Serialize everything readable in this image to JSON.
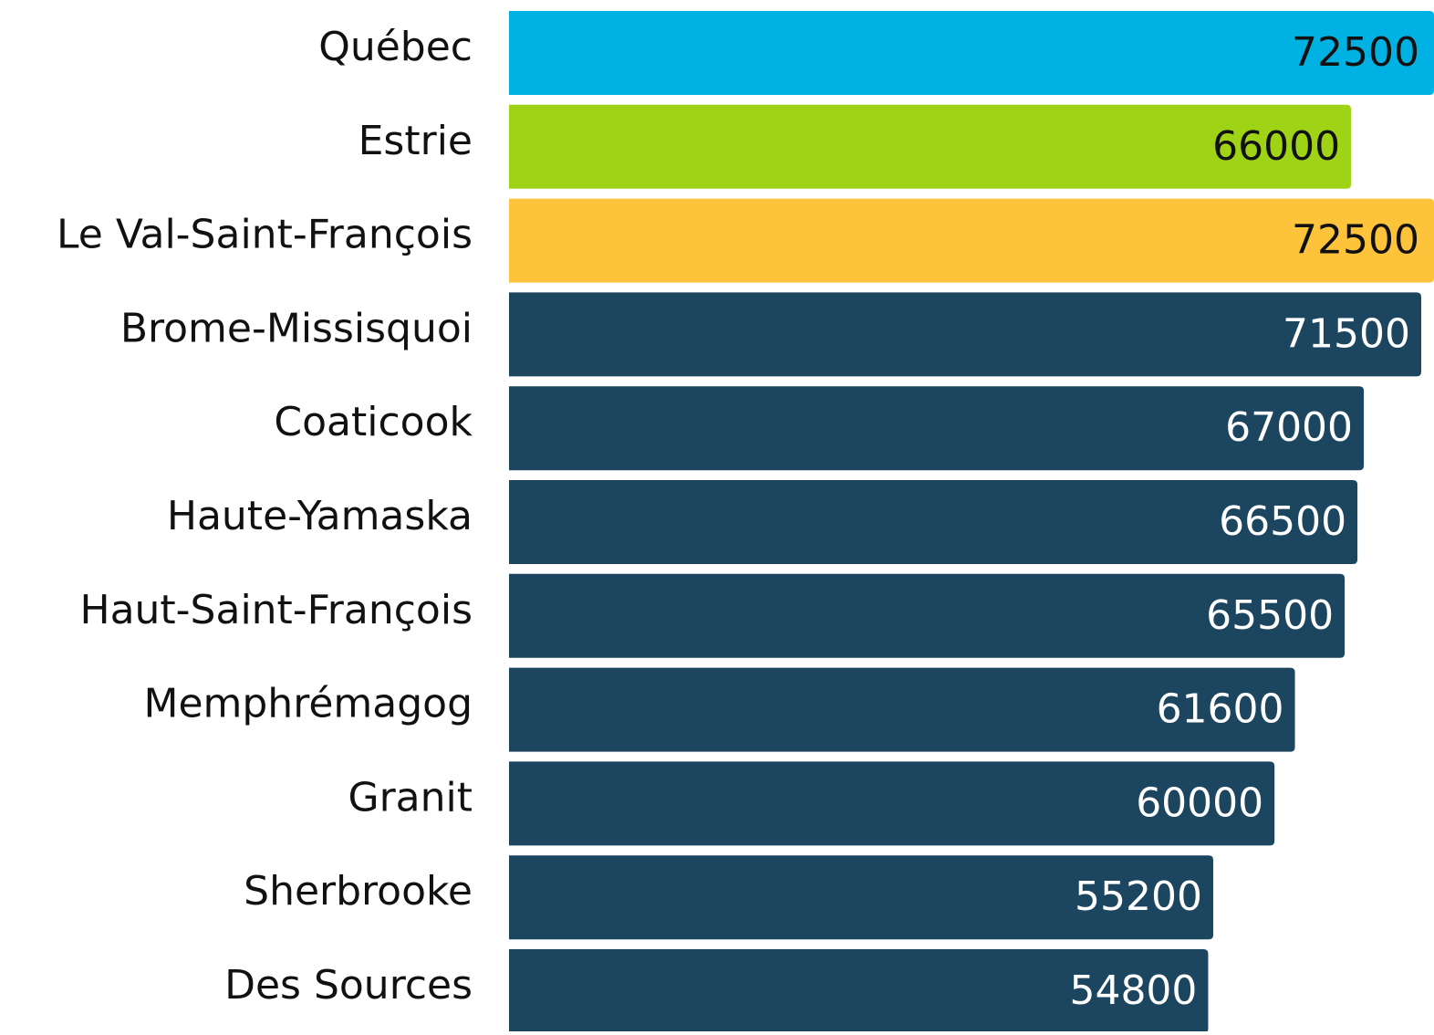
{
  "chart_data": {
    "type": "barh",
    "categories": [
      "Québec",
      "Estrie",
      "Le Val-Saint-François",
      "Brome-Missisquoi",
      "Coaticook",
      "Haute-Yamaska",
      "Haut-Saint-François",
      "Memphrémagog",
      "Granit",
      "Sherbrooke",
      "Des Sources"
    ],
    "values": [
      72500,
      66000,
      72500,
      71500,
      67000,
      66500,
      65500,
      61600,
      60000,
      55200,
      54800
    ],
    "colors": [
      "#00b2e3",
      "#9fd416",
      "#fdc43b",
      "#1c4560",
      "#1c4560",
      "#1c4560",
      "#1c4560",
      "#1c4560",
      "#1c4560",
      "#1c4560",
      "#1c4560"
    ],
    "xlim": [
      0,
      72500
    ]
  }
}
